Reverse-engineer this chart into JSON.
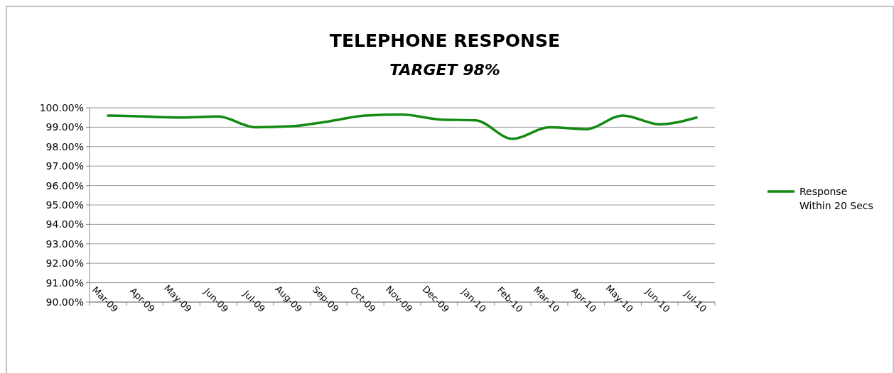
{
  "chart_data": {
    "type": "line",
    "title": "TELEPHONE RESPONSE",
    "subtitle": "TARGET 98%",
    "categories": [
      "Mar-09",
      "Apr-09",
      "May-09",
      "Jun-09",
      "Jul-09",
      "Aug-09",
      "Sep-09",
      "Oct-09",
      "Nov-09",
      "Dec-09",
      "Jan-10",
      "Feb-10",
      "Mar-10",
      "Apr-10",
      "May-10",
      "Jun-10",
      "Jul-10"
    ],
    "series": [
      {
        "name": "Response Within 20 Secs",
        "color": "#138a13",
        "values": [
          99.6,
          99.55,
          99.5,
          99.55,
          99.0,
          99.05,
          99.3,
          99.6,
          99.65,
          99.4,
          99.35,
          98.4,
          99.0,
          98.9,
          99.6,
          99.15,
          99.5
        ]
      }
    ],
    "ylim": [
      90,
      100
    ],
    "yticks": [
      {
        "value": 90,
        "label": "90.00%"
      },
      {
        "value": 91,
        "label": "91.00%"
      },
      {
        "value": 92,
        "label": "92.00%"
      },
      {
        "value": 93,
        "label": "93.00%"
      },
      {
        "value": 94,
        "label": "94.00%"
      },
      {
        "value": 95,
        "label": "95.00%"
      },
      {
        "value": 96,
        "label": "96.00%"
      },
      {
        "value": 97,
        "label": "97.00%"
      },
      {
        "value": 98,
        "label": "98.00%"
      },
      {
        "value": 99,
        "label": "99.00%"
      },
      {
        "value": 100,
        "label": "100.00%"
      }
    ],
    "grid": "y",
    "legend": "right",
    "marker": "none",
    "line_style": "solid"
  }
}
